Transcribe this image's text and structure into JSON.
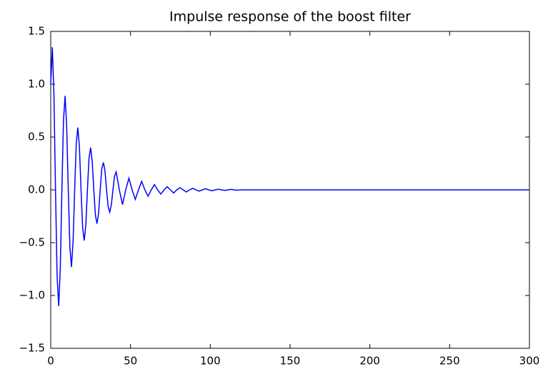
{
  "chart_data": {
    "type": "line",
    "title": "Impulse response of the boost filter",
    "x": [
      0,
      1,
      2,
      3,
      4,
      5,
      6,
      7,
      8,
      9,
      10,
      11,
      12,
      13,
      14,
      15,
      16,
      17,
      18,
      19,
      20,
      21,
      22,
      23,
      24,
      25,
      26,
      27,
      28,
      29,
      30,
      31,
      32,
      33,
      34,
      35,
      36,
      37,
      38,
      39,
      40,
      41,
      43,
      45,
      47,
      49,
      51,
      53,
      55,
      57,
      59,
      61,
      63,
      65,
      67,
      69,
      71,
      73,
      75,
      77,
      79,
      81,
      83,
      85,
      87,
      89,
      91,
      93,
      95,
      97,
      99,
      101,
      103,
      105,
      107,
      109,
      111,
      113,
      115,
      117,
      119,
      150,
      200,
      250,
      300
    ],
    "values": [
      1.0,
      1.35,
      0.91,
      0,
      -0.82,
      -1.1,
      -0.74,
      0,
      0.66,
      0.89,
      0.6,
      0,
      -0.54,
      -0.73,
      -0.49,
      0,
      0.44,
      0.59,
      0.4,
      0,
      -0.36,
      -0.48,
      -0.33,
      0,
      0.3,
      0.4,
      0.27,
      0,
      -0.24,
      -0.32,
      -0.22,
      0,
      0.2,
      0.26,
      0.18,
      0,
      -0.16,
      -0.21,
      -0.14,
      0,
      0.13,
      0.17,
      0,
      -0.14,
      0,
      0.11,
      0,
      -0.09,
      0,
      0.08,
      0,
      -0.06,
      0,
      0.05,
      0,
      -0.04,
      0,
      0.03,
      0,
      -0.03,
      0,
      0.02,
      0,
      -0.02,
      0,
      0.015,
      0,
      -0.012,
      0,
      0.01,
      0,
      -0.008,
      0,
      0.006,
      0,
      -0.005,
      0,
      0.004,
      0,
      -0.003,
      0,
      0,
      0,
      0,
      0
    ],
    "color": "#0000ff",
    "xlim": [
      0,
      300
    ],
    "xticks": [
      0,
      50,
      100,
      150,
      200,
      250,
      300
    ],
    "ylim": [
      -1.5,
      1.5
    ],
    "yticks": [
      {
        "value": -1.5,
        "label": "−1.5"
      },
      {
        "value": -1.0,
        "label": "−1.0"
      },
      {
        "value": -0.5,
        "label": "−0.5"
      },
      {
        "value": 0,
        "label": "0.0"
      },
      0.5,
      {
        "value": 1.0,
        "label": "1.0"
      },
      1.5
    ],
    "grid": false
  }
}
